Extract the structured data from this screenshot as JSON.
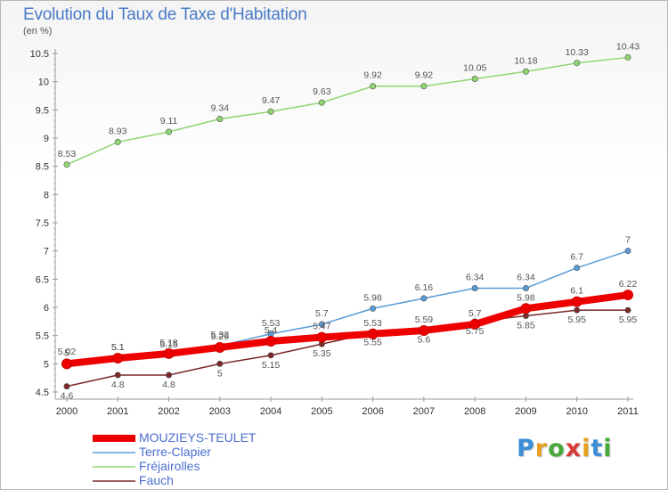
{
  "header": {
    "title": "Evolution du Taux de Taxe d'Habitation",
    "subtitle": "(en %)"
  },
  "logo": {
    "text": "Proxiti",
    "letters": [
      "P",
      "r",
      "o",
      "x",
      "i",
      "t",
      "i"
    ],
    "colors": [
      "#3a8fd8",
      "#e8a020",
      "#49a83b",
      "#d83a3a",
      "#e8a020",
      "#3a8fd8",
      "#49a83b"
    ]
  },
  "chart_data": {
    "type": "line",
    "title": "Evolution du Taux de Taxe d'Habitation",
    "subtitle": "(en %)",
    "x": [
      "2000",
      "2001",
      "2002",
      "2003",
      "2004",
      "2005",
      "2006",
      "2007",
      "2008",
      "2009",
      "2010",
      "2011"
    ],
    "ylim": [
      4.5,
      10.5
    ],
    "yticks": [
      "4.5",
      "5",
      "5.5",
      "6",
      "6.5",
      "7",
      "7.5",
      "8",
      "8.5",
      "9",
      "9.5",
      "10",
      "10.5"
    ],
    "grid": false,
    "legend_position": "bottom-left",
    "series": [
      {
        "name": "MOUZIEYS-TEULET",
        "color": "#ee0000",
        "values": [
          5.0,
          5.1,
          5.18,
          5.29,
          5.4,
          5.47,
          5.53,
          5.59,
          5.7,
          5.98,
          6.1,
          6.22
        ],
        "labels": [
          "5",
          "5.1",
          "5.18",
          "5.29",
          "5.4",
          "5.47",
          "5.53",
          "5.59",
          "5.7",
          "5.98",
          "6.1",
          "6.22"
        ]
      },
      {
        "name": "Terre-Clapier",
        "color": "#5a9bd5",
        "values": [
          5.02,
          5.1,
          5.15,
          5.32,
          5.53,
          5.7,
          5.98,
          6.16,
          6.34,
          6.34,
          6.7,
          7.0
        ],
        "labels": [
          "5.02",
          "5.1",
          "5.15",
          "5.32",
          "5.53",
          "5.7",
          "5.98",
          "6.16",
          "6.34",
          "6.34",
          "6.7",
          "7"
        ]
      },
      {
        "name": "Fréjairolles",
        "color": "#8fd672",
        "values": [
          8.53,
          8.93,
          9.11,
          9.34,
          9.47,
          9.63,
          9.92,
          9.92,
          10.05,
          10.18,
          10.33,
          10.43
        ],
        "labels": [
          "8.53",
          "8.93",
          "9.11",
          "9.34",
          "9.47",
          "9.63",
          "9.92",
          "9.92",
          "10.05",
          "10.18",
          "10.33",
          "10.43"
        ]
      },
      {
        "name": "Fauch",
        "color": "#7a2828",
        "values": [
          4.6,
          4.8,
          4.8,
          5.0,
          5.15,
          5.35,
          5.55,
          5.6,
          5.75,
          5.85,
          5.95,
          5.95
        ],
        "labels": [
          "4.6",
          "4.8",
          "4.8",
          "5",
          "5.15",
          "5.35",
          "5.55",
          "5.6",
          "5.75",
          "5.85",
          "5.95",
          "5.95"
        ]
      }
    ]
  }
}
